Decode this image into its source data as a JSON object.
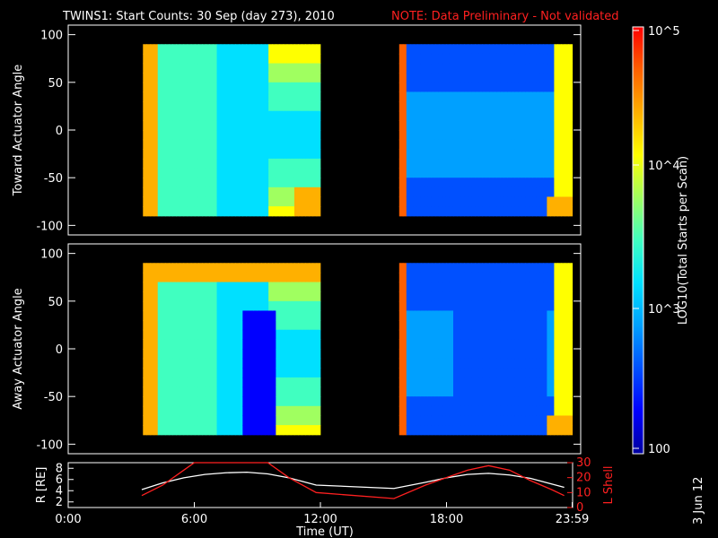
{
  "title": "TWINS1: Start Counts: 30 Sep (day 273), 2010",
  "note": "NOTE: Data Preliminary - Not validated",
  "date_stamp": "3 Jun 12",
  "colorbar": {
    "label": "LOG10(Total Starts per Scan)",
    "ticks": [
      "10^5",
      "10^4",
      "10^3",
      "100"
    ],
    "colors": [
      "#0000a0",
      "#0000ff",
      "#0050ff",
      "#00a0ff",
      "#00e0ff",
      "#40ffc0",
      "#a0ff60",
      "#ffff00",
      "#ffb000",
      "#ff6000",
      "#ff0000"
    ]
  },
  "chart_data": [
    {
      "type": "heatmap",
      "ylabel": "Toward Actuator Angle",
      "ylim": [
        -110,
        110
      ],
      "yticks": [
        "100",
        "50",
        "0",
        "-50",
        "-100"
      ],
      "xlim": [
        0,
        24
      ],
      "data_intervals": [
        [
          3.5,
          11.8
        ],
        [
          15.5,
          23.6
        ]
      ]
    },
    {
      "type": "heatmap",
      "ylabel": "Away Actuator Angle",
      "ylim": [
        -110,
        110
      ],
      "yticks": [
        "100",
        "50",
        "0",
        "-50",
        "-100"
      ],
      "xlim": [
        0,
        24
      ],
      "data_intervals": [
        [
          3.5,
          11.8
        ],
        [
          15.5,
          23.6
        ]
      ]
    },
    {
      "type": "line",
      "ylabel_left": "R [RE]",
      "ylabel_right": "L Shell",
      "yticks_left": [
        "8",
        "6",
        "4",
        "2"
      ],
      "yticks_right": [
        "30",
        "20",
        "10",
        "0"
      ],
      "ylim_left": [
        1,
        9
      ],
      "ylim_right": [
        0,
        30
      ],
      "xlabel": "Time (UT)",
      "xticks": [
        "0:00",
        "6:00",
        "12:00",
        "18:00",
        "23:59"
      ],
      "xtick_values": [
        0,
        6,
        12,
        18,
        23.98
      ],
      "xlim": [
        0,
        24
      ],
      "series": [
        {
          "color": "#ffffff",
          "x": [
            3.5,
            4.5,
            5.5,
            6.5,
            7.5,
            8.5,
            9.5,
            10.5,
            11.8,
            15.5,
            17,
            18,
            19,
            20,
            21,
            22,
            23,
            23.6
          ],
          "y": [
            4.2,
            5.4,
            6.3,
            6.9,
            7.2,
            7.3,
            7.0,
            6.3,
            5.0,
            4.4,
            5.5,
            6.3,
            6.9,
            7.1,
            6.8,
            6.2,
            5.2,
            4.6
          ]
        },
        {
          "color": "#ff2020",
          "x": [
            3.5,
            4.5,
            5.5,
            6.0,
            9.5,
            10.5,
            11.8,
            15.5,
            17,
            18,
            19,
            20,
            21,
            22,
            23,
            23.6
          ],
          "y": [
            8,
            15,
            25,
            32,
            32,
            20,
            10,
            6,
            15,
            20,
            25,
            28,
            25,
            18,
            12,
            8
          ]
        }
      ]
    }
  ]
}
